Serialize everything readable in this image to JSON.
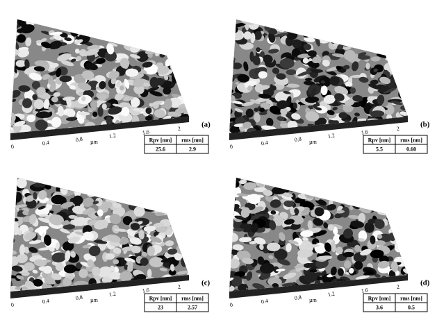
{
  "panels": [
    {
      "label": "(a)",
      "x_ticks": [
        "0",
        "0.4",
        "0.8",
        "1.2",
        "1.6",
        "2"
      ],
      "unit": "µm",
      "table": {
        "headers": [
          "Rpv [nm]",
          "rms [nm]"
        ],
        "values": [
          "25.6",
          "2.9"
        ]
      }
    },
    {
      "label": "(b)",
      "x_ticks": [
        "0",
        "0.4",
        "0.8",
        "1.2",
        "1.6",
        "2"
      ],
      "unit": "µm",
      "table": {
        "headers": [
          "Rpv [nm]",
          "rms [nm]"
        ],
        "values": [
          "5.5",
          "0.60"
        ]
      }
    },
    {
      "label": "(c)",
      "x_ticks": [
        "0",
        "0.4",
        "0.8",
        "1.2",
        "1.6",
        "2"
      ],
      "unit": "µm",
      "table": {
        "headers": [
          "Rpv [nm]",
          "rms [nm]"
        ],
        "values": [
          "23",
          "2.57"
        ]
      }
    },
    {
      "label": "(d)",
      "x_ticks": [
        "0",
        "0.4",
        "0.8",
        "1.2",
        "1.6",
        "2"
      ],
      "unit": "µm",
      "table": {
        "headers": [
          "Rpv [nm]",
          "rms [nm]"
        ],
        "values": [
          "3.6",
          "0.5"
        ]
      }
    }
  ]
}
